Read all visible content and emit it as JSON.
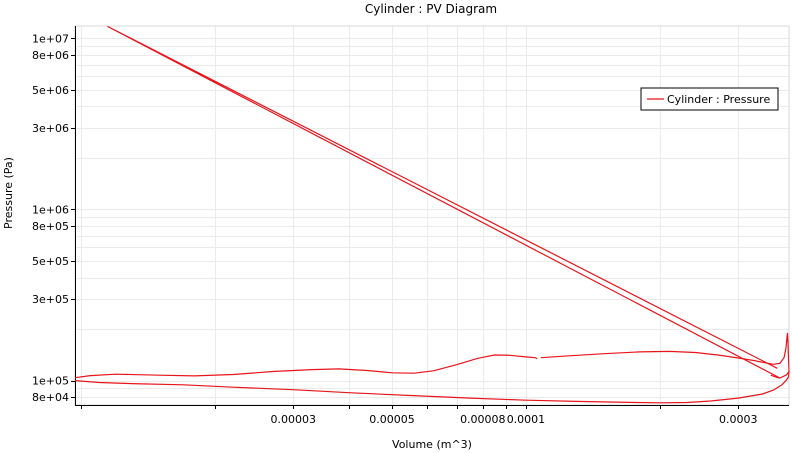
{
  "chart_data": {
    "type": "line",
    "title": "Cylinder : PV Diagram",
    "xlabel": "Volume (m^3)",
    "ylabel": "Pressure (Pa)",
    "xscale": "log",
    "yscale": "log",
    "xlim": [
      9.7e-06,
      0.00039
    ],
    "ylim": [
      72000,
      11800000
    ],
    "grid": true,
    "legend_position": "top-right",
    "x_ticks": [
      {
        "value": 3e-05,
        "label": "0.00003"
      },
      {
        "value": 5e-05,
        "label": "0.00005"
      },
      {
        "value": 8e-05,
        "label": "0.00008"
      },
      {
        "value": 0.0001,
        "label": "0.0001"
      },
      {
        "value": 0.0003,
        "label": "0.0003"
      }
    ],
    "y_ticks": [
      {
        "value": 10000000,
        "label": "1e+07"
      },
      {
        "value": 8000000,
        "label": "8e+06"
      },
      {
        "value": 5000000,
        "label": "5e+06"
      },
      {
        "value": 3000000,
        "label": "3e+06"
      },
      {
        "value": 1000000,
        "label": "1e+06"
      },
      {
        "value": 800000,
        "label": "8e+05"
      },
      {
        "value": 500000,
        "label": "5e+05"
      },
      {
        "value": 300000,
        "label": "3e+05"
      },
      {
        "value": 100000,
        "label": "1e+05"
      },
      {
        "value": 80000,
        "label": "8e+04"
      }
    ],
    "series": [
      {
        "name": "Cylinder : Pressure",
        "color": "#e8141b",
        "segments": [
          [
            [
              9.7e-06,
              104000
            ],
            [
              1.05e-05,
              107000
            ],
            [
              1.2e-05,
              109000
            ],
            [
              1.5e-05,
              107500
            ],
            [
              1.8e-05,
              106500
            ],
            [
              2.2e-05,
              108500
            ],
            [
              2.7e-05,
              113000
            ],
            [
              3.3e-05,
              116000
            ],
            [
              3.8e-05,
              117000
            ],
            [
              4.4e-05,
              114500
            ],
            [
              5e-05,
              111000
            ],
            [
              5.6e-05,
              110500
            ],
            [
              6.2e-05,
              114000
            ],
            [
              7e-05,
              124000
            ],
            [
              7.8e-05,
              135000
            ],
            [
              8.5e-05,
              141000
            ],
            [
              9.2e-05,
              140500
            ],
            [
              0.0001,
              137500
            ],
            [
              0.000105,
              136000
            ],
            [
              0.000106,
              134000
            ]
          ],
          [
            [
              0.000108,
              136000
            ],
            [
              0.000125,
              139500
            ],
            [
              0.00015,
              143500
            ],
            [
              0.00018,
              147000
            ],
            [
              0.00021,
              148000
            ],
            [
              0.00024,
              146000
            ],
            [
              0.00027,
              141000
            ],
            [
              0.0003,
              135500
            ],
            [
              0.000325,
              131000
            ],
            [
              0.000345,
              127000
            ],
            [
              0.00036,
              124500
            ],
            [
              0.000372,
              126000
            ],
            [
              0.00038,
              136000
            ],
            [
              0.000384,
              155000
            ],
            [
              0.000386,
              180000
            ],
            [
              0.000387,
              189000
            ],
            [
              0.000388,
              165000
            ],
            [
              0.000389,
              135000
            ],
            [
              0.00039,
              113000
            ],
            [
              0.000389,
              105000
            ],
            [
              0.000384,
              100000
            ],
            [
              0.000376,
              94500
            ],
            [
              0.00036,
              88000
            ],
            [
              0.00034,
              83500
            ],
            [
              0.0003,
              79000
            ],
            [
              0.00026,
              76000
            ],
            [
              0.00023,
              74500
            ],
            [
              0.0002,
              74200
            ],
            [
              0.00017,
              74600
            ],
            [
              0.00013,
              75600
            ],
            [
              0.0001,
              76800
            ],
            [
              7.5e-05,
              79000
            ],
            [
              5.5e-05,
              81800
            ],
            [
              4e-05,
              85000
            ],
            [
              3e-05,
              88500
            ],
            [
              2.2e-05,
              91500
            ],
            [
              1.7e-05,
              94500
            ],
            [
              1.3e-05,
              96000
            ],
            [
              1.1e-05,
              97500
            ],
            [
              9.7e-06,
              100000
            ]
          ],
          [
            [
              0.000355,
              107500
            ],
            [
              0.000366,
              104500
            ],
            [
              0.000372,
              103500
            ],
            [
              0.000385,
              108000
            ],
            [
              0.00039,
              113000
            ]
          ],
          [
            [
              0.000372,
              103500
            ],
            [
              1.15e-05,
              11700000
            ],
            [
              0.000367,
              118000
            ]
          ]
        ]
      }
    ]
  }
}
